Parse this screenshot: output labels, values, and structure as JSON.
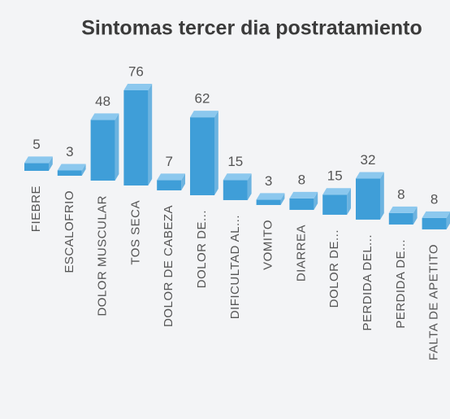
{
  "chart_data": {
    "type": "bar3d",
    "title": "Sintomas tercer dia postratamiento",
    "categories": [
      "FIEBRE",
      "ESCALOFRIO",
      "DOLOR MUSCULAR",
      "TOS SECA",
      "DOLOR DE CABEZA",
      "DOLOR DE...",
      "DIFICULTAD AL...",
      "VOMITO",
      "DIARREA",
      "DOLOR DE...",
      "PERDIDA DEL...",
      "PERDIDA DE...",
      "FALTA DE APETITO"
    ],
    "values": [
      5,
      3,
      48,
      76,
      7,
      62,
      15,
      3,
      8,
      15,
      32,
      8,
      8
    ],
    "color": "#3f9ed8"
  }
}
